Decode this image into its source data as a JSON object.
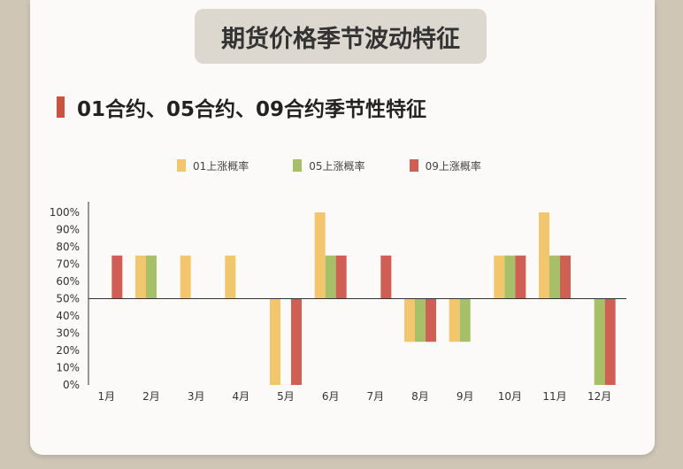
{
  "banner_title": "期货价格季节波动特征",
  "subtitle": "01合约、05合约、09合约季节性特征",
  "colors": {
    "series_01": "#f2c66d",
    "series_05": "#a6c06a",
    "series_09": "#cf5f55",
    "background": "#cfc6b6",
    "card": "#fbfaf8"
  },
  "chart_data": {
    "type": "bar",
    "title": "",
    "xlabel": "",
    "ylabel": "",
    "baseline": 50,
    "ylim": [
      0,
      100
    ],
    "ytick_labels": [
      "100%",
      "90%",
      "80%",
      "70%",
      "60%",
      "50%",
      "40%",
      "30%",
      "20%",
      "10%",
      "0%"
    ],
    "legend_position": "top-center",
    "categories": [
      "1月",
      "2月",
      "3月",
      "4月",
      "5月",
      "6月",
      "7月",
      "8月",
      "9月",
      "10月",
      "11月",
      "12月"
    ],
    "series": [
      {
        "name": "01上涨概率",
        "values": [
          null,
          75,
          75,
          75,
          0,
          100,
          null,
          25,
          25,
          75,
          100,
          null
        ]
      },
      {
        "name": "05上涨概率",
        "values": [
          null,
          75,
          null,
          null,
          null,
          75,
          null,
          25,
          25,
          75,
          75,
          0
        ]
      },
      {
        "name": "09上涨概率",
        "values": [
          75,
          null,
          null,
          null,
          0,
          75,
          75,
          25,
          null,
          75,
          75,
          0
        ]
      }
    ]
  }
}
